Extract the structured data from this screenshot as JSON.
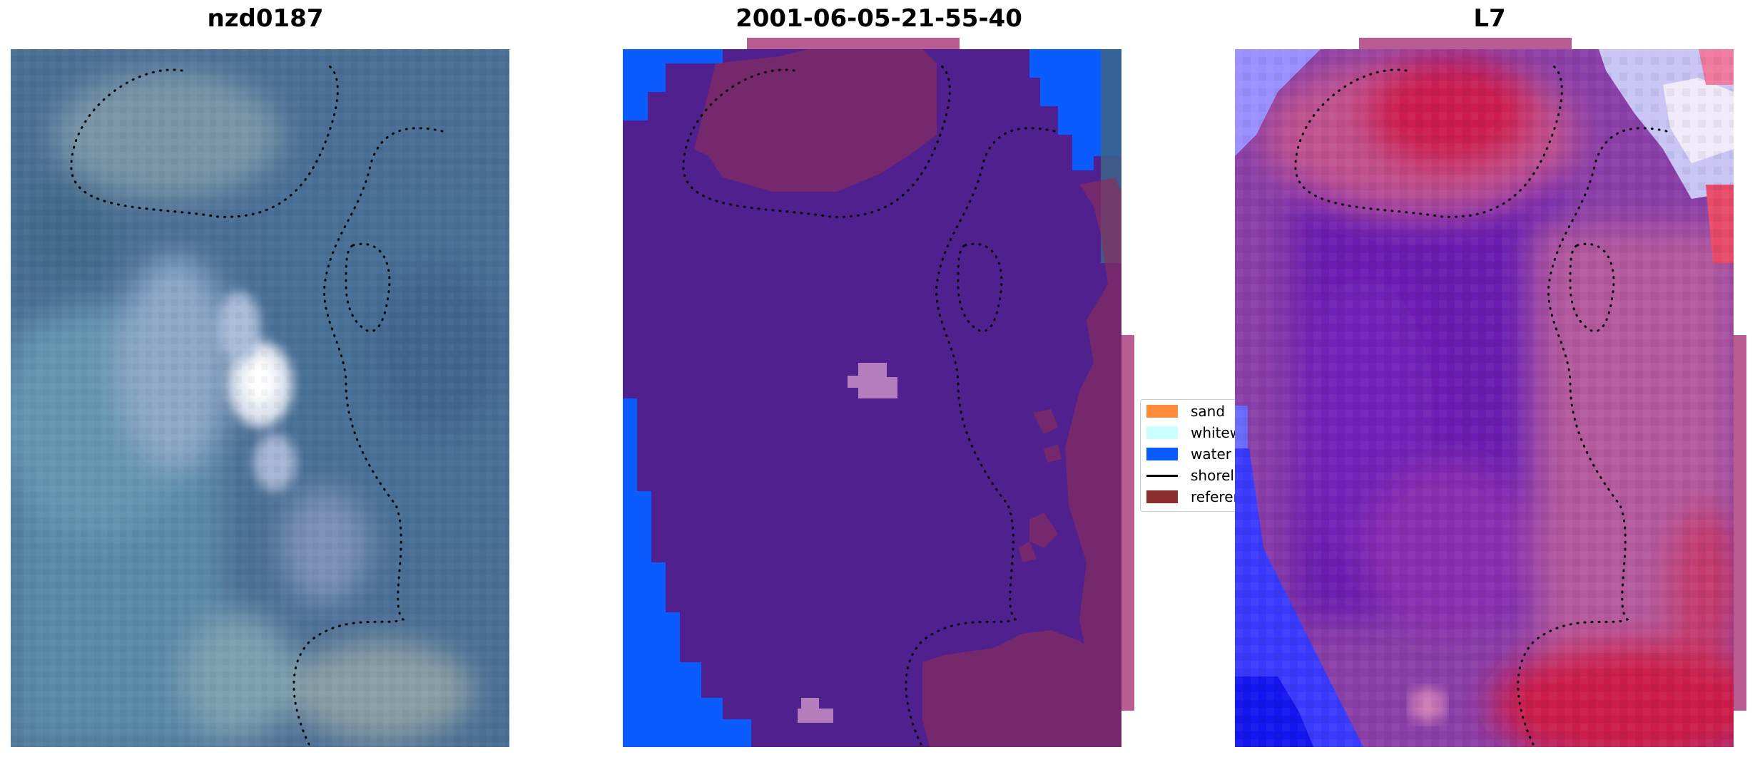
{
  "panels": [
    {
      "title": "nzd0187"
    },
    {
      "title": "2001-06-05-21-55-40"
    },
    {
      "title": "L7"
    }
  ],
  "legend": {
    "items": [
      {
        "label": "sand",
        "color": "#ff8c3a",
        "kind": "patch"
      },
      {
        "label": "whitewater",
        "color": "#ccffff",
        "kind": "patch"
      },
      {
        "label": "water",
        "color": "#0a5cff",
        "kind": "patch"
      },
      {
        "label": "shoreline",
        "color": "#000000",
        "kind": "line"
      },
      {
        "label": "reference",
        "color": "#8b2d2d",
        "kind": "patch"
      }
    ]
  },
  "colors": {
    "water_class": "#0a5cff",
    "land_class": "#51208f",
    "reference_overlay": "#8b2d5a",
    "pink_band": "#b85c91"
  }
}
